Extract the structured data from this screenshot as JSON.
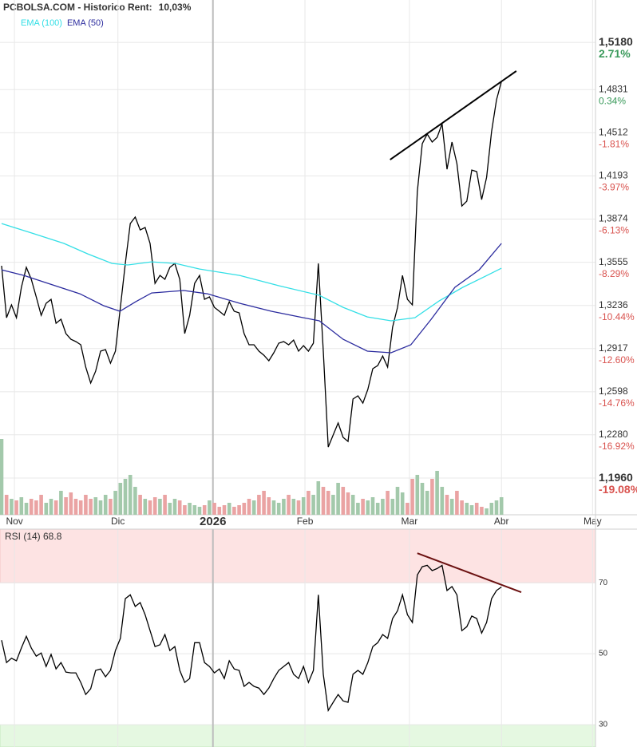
{
  "chart_data": [
    {
      "type": "line",
      "title": "PCBOLSA.COM - Historico  Rent:",
      "rent": "10,03%",
      "rent_color": "#2e8b57",
      "x": [
        0,
        1,
        2,
        3,
        4,
        5,
        6,
        7,
        8,
        9,
        10,
        11,
        12,
        13,
        14,
        15,
        16,
        17,
        18,
        19,
        20,
        21,
        22,
        23,
        24,
        25,
        26,
        27,
        28,
        29,
        30,
        31,
        32,
        33,
        34,
        35,
        36,
        37,
        38,
        39,
        40,
        41,
        42,
        43,
        44,
        45,
        46,
        47,
        48,
        49,
        50,
        51,
        52,
        53,
        54,
        55,
        56,
        57,
        58,
        59,
        60,
        61,
        62,
        63,
        64,
        65,
        66,
        67,
        68,
        69,
        70,
        71,
        72,
        73,
        74,
        75,
        76,
        77,
        78,
        79,
        80,
        81,
        82,
        83,
        84,
        85,
        86,
        87,
        88,
        89,
        90,
        91,
        92,
        93,
        94,
        95,
        96,
        97,
        98,
        99,
        100,
        101
      ],
      "xlim": [
        0,
        120
      ],
      "xticks": [
        {
          "value": 2.6,
          "label": "Nov"
        },
        {
          "value": 23.5,
          "label": "Dic"
        },
        {
          "value": 42.7,
          "label": "2026"
        },
        {
          "value": 61.3,
          "label": "Feb"
        },
        {
          "value": 82.4,
          "label": "Mar"
        },
        {
          "value": 101,
          "label": "Abr"
        },
        {
          "value": 119.4,
          "label": "May"
        }
      ],
      "ylim": [
        1.1689,
        1.5493
      ],
      "yticks": [
        {
          "value": 1.518,
          "label": "1,5180"
        },
        {
          "value": 1.4831,
          "label": "1,4831"
        },
        {
          "value": 1.4512,
          "label": "1,4512"
        },
        {
          "value": 1.4193,
          "label": "1,4193"
        },
        {
          "value": 1.3874,
          "label": "1,3874"
        },
        {
          "value": 1.3555,
          "label": "1,3555"
        },
        {
          "value": 1.3236,
          "label": "1,3236"
        },
        {
          "value": 1.2917,
          "label": "1,2917"
        },
        {
          "value": 1.2598,
          "label": "1,2598"
        },
        {
          "value": 1.228,
          "label": "1,2280"
        },
        {
          "value": 1.196,
          "label": "1,1960"
        }
      ],
      "pct_ticks": [
        {
          "value": 2.71,
          "label": "2.71%"
        },
        {
          "value": 0.34,
          "label": "0.34%"
        },
        {
          "value": -1.81,
          "label": "-1.81%"
        },
        {
          "value": -3.97,
          "label": "-3.97%"
        },
        {
          "value": -6.13,
          "label": "-6.13%"
        },
        {
          "value": -8.29,
          "label": "-8.29%"
        },
        {
          "value": -10.44,
          "label": "-10.44%"
        },
        {
          "value": -12.6,
          "label": "-12.60%"
        },
        {
          "value": -14.76,
          "label": "-14.76%"
        },
        {
          "value": -16.92,
          "label": "-16.92%"
        },
        {
          "value": -19.08,
          "label": "-19.08%"
        }
      ],
      "positive_color": "#3a9a5b",
      "negative_color": "#d9534f",
      "grid": true,
      "series": [
        {
          "color": "#000000",
          "values": [
            1.3529,
            1.3145,
            1.324,
            1.3145,
            1.337,
            1.3517,
            1.3429,
            1.3299,
            1.3163,
            1.3252,
            1.3281,
            1.3104,
            1.3134,
            1.3028,
            1.2986,
            1.2969,
            1.2945,
            1.278,
            1.2662,
            1.275,
            1.2898,
            1.291,
            1.2809,
            1.2898,
            1.3222,
            1.3546,
            1.3841,
            1.3889,
            1.3794,
            1.3812,
            1.3694,
            1.3399,
            1.3458,
            1.3429,
            1.3517,
            1.3546,
            1.3429,
            1.3028,
            1.3163,
            1.3399,
            1.3458,
            1.3281,
            1.3299,
            1.3222,
            1.3193,
            1.3163,
            1.3263,
            1.3193,
            1.3181,
            1.3028,
            1.2945,
            1.2945,
            1.2898,
            1.2868,
            1.2827,
            1.2886,
            1.2957,
            1.2969,
            1.2945,
            1.298,
            1.2898,
            1.2939,
            1.2898,
            1.2957,
            1.3546,
            1.2898,
            1.219,
            1.2279,
            1.2367,
            1.2261,
            1.2231,
            1.2544,
            1.2568,
            1.2514,
            1.2615,
            1.2768,
            1.2792,
            1.2862,
            1.278,
            1.3075,
            1.3222,
            1.3458,
            1.3281,
            1.324,
            1.4077,
            1.4431,
            1.4502,
            1.4443,
            1.4478,
            1.4578,
            1.4242,
            1.4443,
            1.4284,
            1.3971,
            1.4006,
            1.4236,
            1.4225,
            1.4018,
            1.4183,
            1.452,
            1.4755,
            1.4891
          ]
        },
        {
          "name": "EMA (100)",
          "color": "#33dfe6",
          "x": [
            0,
            6.1,
            12.6,
            17.4,
            22.3,
            25.5,
            30.3,
            35.2,
            40,
            48.1,
            56.1,
            64.2,
            69,
            73.9,
            78.7,
            83.5,
            88.4,
            93.2,
            98.1,
            101
          ],
          "values": [
            1.3841,
            1.3771,
            1.3694,
            1.3617,
            1.3546,
            1.3535,
            1.3558,
            1.3546,
            1.3505,
            1.3458,
            1.3381,
            1.3311,
            1.3222,
            1.3151,
            1.3122,
            1.3145,
            1.3269,
            1.337,
            1.3458,
            1.3511
          ]
        },
        {
          "name": "EMA (50)",
          "color": "#2b2b9e",
          "x": [
            0,
            4.5,
            9.4,
            15.8,
            20.6,
            23.9,
            27.1,
            30.3,
            36.8,
            41.6,
            48.1,
            54.5,
            61,
            64.2,
            69,
            73.9,
            78.7,
            82.7,
            86.8,
            91.6,
            96.5,
            101
          ],
          "values": [
            1.3499,
            1.3458,
            1.3399,
            1.3322,
            1.3234,
            1.3193,
            1.3263,
            1.3328,
            1.3346,
            1.3322,
            1.3252,
            1.3193,
            1.3145,
            1.3122,
            1.2986,
            1.2898,
            1.2886,
            1.2945,
            1.3134,
            1.337,
            1.3499,
            1.3694
          ]
        }
      ],
      "trendline": {
        "x": [
          78.5,
          104
        ],
        "values": [
          1.4313,
          1.4968
        ],
        "color": "#000000"
      },
      "volume": {
        "values": [
          95,
          25,
          20,
          18,
          22,
          15,
          20,
          18,
          25,
          15,
          20,
          18,
          30,
          22,
          28,
          20,
          18,
          25,
          20,
          22,
          18,
          25,
          20,
          30,
          40,
          45,
          50,
          35,
          25,
          20,
          18,
          22,
          20,
          25,
          15,
          20,
          18,
          12,
          15,
          12,
          10,
          12,
          18,
          15,
          10,
          12,
          15,
          10,
          12,
          15,
          20,
          18,
          25,
          30,
          22,
          18,
          15,
          20,
          25,
          20,
          18,
          22,
          30,
          25,
          42,
          35,
          30,
          25,
          40,
          35,
          28,
          25,
          15,
          20,
          18,
          22,
          15,
          20,
          30,
          20,
          35,
          28,
          15,
          45,
          50,
          40,
          30,
          45,
          55,
          35,
          25,
          20,
          30,
          18,
          15,
          12,
          15,
          10,
          8,
          15,
          18,
          22
        ],
        "up_color": "#a3c9ab",
        "down_color": "#eaa3a3"
      }
    },
    {
      "type": "line",
      "title": "RSI (14) 68.8",
      "x": [
        0,
        1,
        2,
        3,
        4,
        5,
        6,
        7,
        8,
        9,
        10,
        11,
        12,
        13,
        14,
        15,
        16,
        17,
        18,
        19,
        20,
        21,
        22,
        23,
        24,
        25,
        26,
        27,
        28,
        29,
        30,
        31,
        32,
        33,
        34,
        35,
        36,
        37,
        38,
        39,
        40,
        41,
        42,
        43,
        44,
        45,
        46,
        47,
        48,
        49,
        50,
        51,
        52,
        53,
        54,
        55,
        56,
        57,
        58,
        59,
        60,
        61,
        62,
        63,
        64,
        65,
        66,
        67,
        68,
        69,
        70,
        71,
        72,
        73,
        74,
        75,
        76,
        77,
        78,
        79,
        80,
        81,
        82,
        83,
        84,
        85,
        86,
        87,
        88,
        89,
        90,
        91,
        92,
        93,
        94,
        95,
        96,
        97,
        98,
        99,
        100,
        101
      ],
      "xlim": [
        0,
        120
      ],
      "ylim": [
        23.7,
        85.1
      ],
      "yticks": [
        70,
        50,
        30
      ],
      "bands": {
        "overbought": 70,
        "oversold": 30,
        "overbought_color": "#fde3e3",
        "oversold_color": "#e5f8e1"
      },
      "series": [
        {
          "color": "#000000",
          "values": [
            53.8,
            47.5,
            48.7,
            48.0,
            51.6,
            54.9,
            51.6,
            49.3,
            50.2,
            46.4,
            49.8,
            45.7,
            47.5,
            44.8,
            44.6,
            44.6,
            41.9,
            38.5,
            40.1,
            45.3,
            45.7,
            43.5,
            45.3,
            50.9,
            54.3,
            65.5,
            66.6,
            63.3,
            64.4,
            61.0,
            56.5,
            52.0,
            52.5,
            55.4,
            50.9,
            52.0,
            45.3,
            41.9,
            43.0,
            53.1,
            53.1,
            47.5,
            46.4,
            44.6,
            45.7,
            43.0,
            48.0,
            45.7,
            45.3,
            40.8,
            41.9,
            40.8,
            40.3,
            38.5,
            40.3,
            43.0,
            45.3,
            46.4,
            47.5,
            44.2,
            43.0,
            46.4,
            41.9,
            45.3,
            66.6,
            44.2,
            34.0,
            36.3,
            38.5,
            36.7,
            36.3,
            44.2,
            45.3,
            44.2,
            47.5,
            52.0,
            53.1,
            55.4,
            54.3,
            59.9,
            62.1,
            66.6,
            61.0,
            58.8,
            72.2,
            74.5,
            74.9,
            73.4,
            74.0,
            74.9,
            67.8,
            68.9,
            66.6,
            56.5,
            57.6,
            60.6,
            59.9,
            55.8,
            58.8,
            65.5,
            67.8,
            68.8
          ]
        }
      ],
      "trendline": {
        "x": [
          84,
          105
        ],
        "values": [
          78.3,
          67.3
        ],
        "color": "#6b1010"
      }
    }
  ]
}
